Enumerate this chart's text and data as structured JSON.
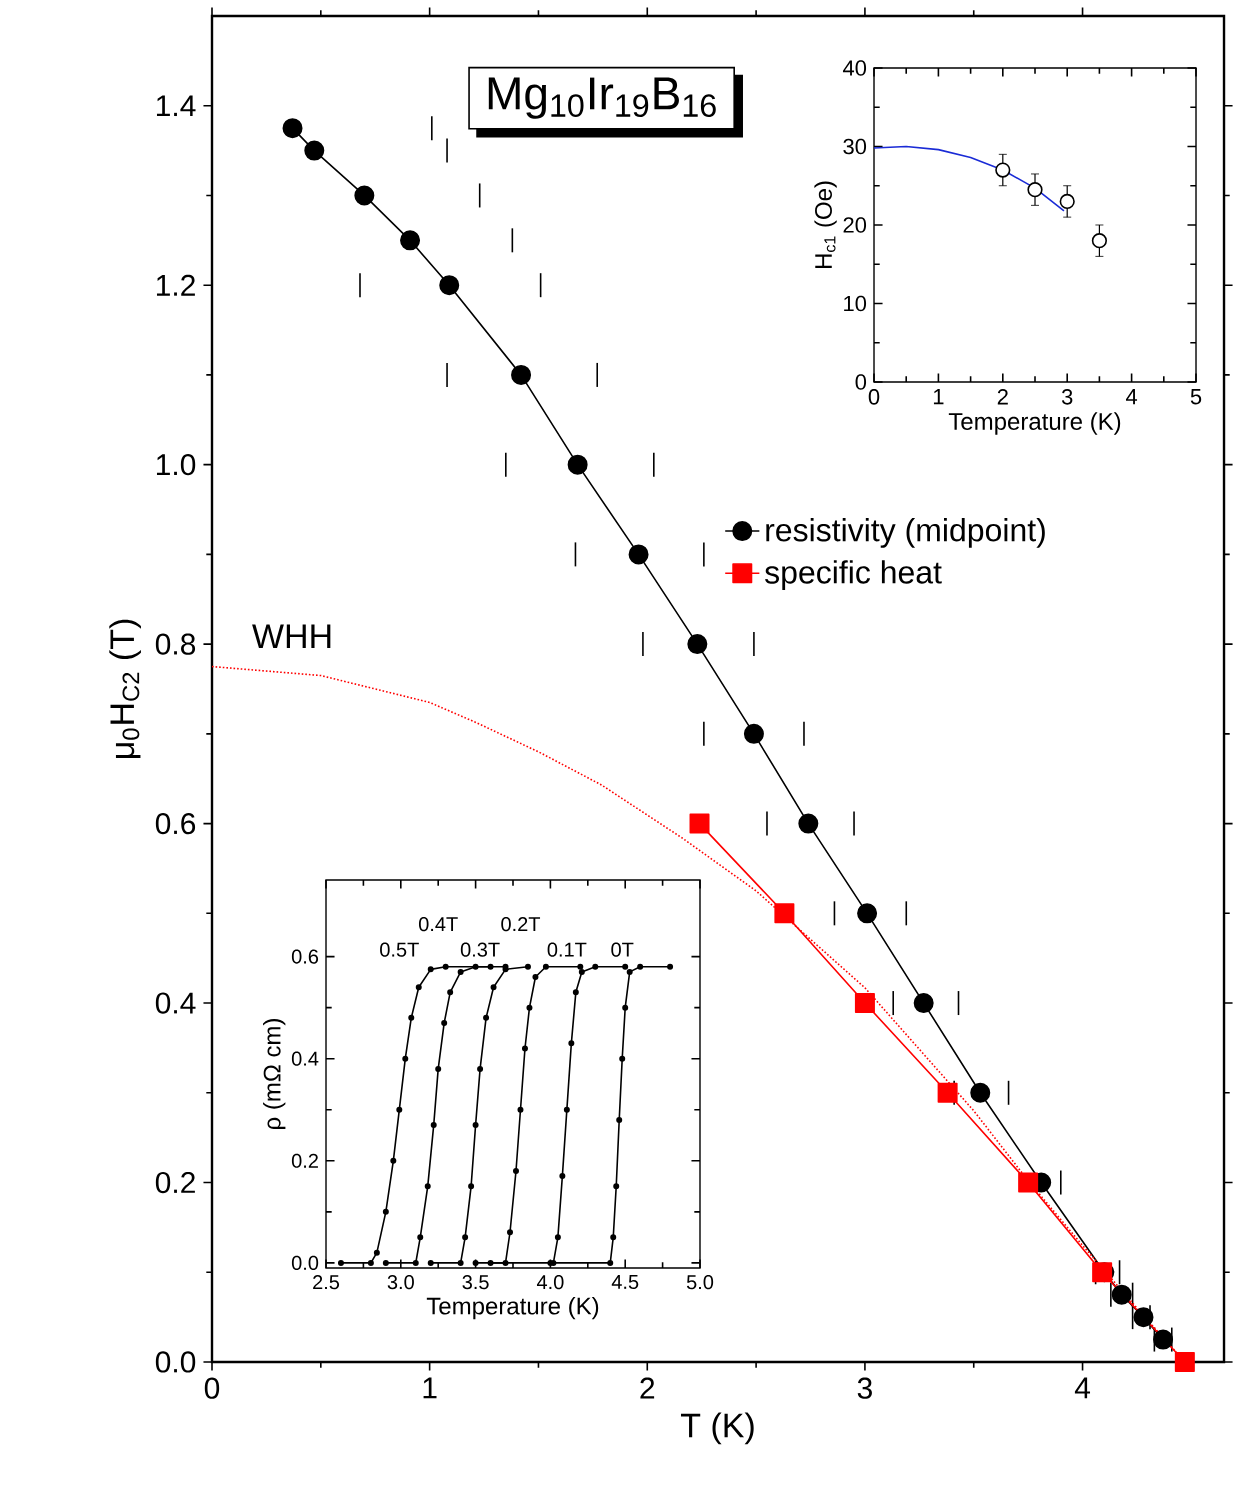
{
  "chart_data": [
    {
      "type": "line",
      "title": "Mg$_{10}$Ir$_{19}$B$_{16}$",
      "xlabel": "T (K)",
      "ylabel": "μ$_{0}$H$_{C2}$ (T)",
      "xlim": [
        0,
        4.65
      ],
      "ylim": [
        0,
        1.5
      ],
      "xticks": [
        0,
        1,
        2,
        3,
        4
      ],
      "yticks": [
        {
          "value": 0,
          "label": "0.0"
        },
        {
          "value": 0.2,
          "label": "0.2"
        },
        {
          "value": 0.4,
          "label": "0.4"
        },
        {
          "value": 0.6,
          "label": "0.6"
        },
        {
          "value": 0.8,
          "label": "0.8"
        },
        {
          "value": 1.0,
          "label": "1.0"
        },
        {
          "value": 1.2,
          "label": "1.2"
        },
        {
          "value": 1.4,
          "label": "1.4"
        }
      ],
      "legend": "right",
      "annotations": [
        {
          "text": "WHH",
          "x": 0.37,
          "y": 0.77
        }
      ],
      "series": [
        {
          "name": "resistivity (midpoint)",
          "color": "#000000",
          "marker": "circle",
          "x": [
            0.37,
            0.47,
            0.7,
            0.91,
            1.09,
            1.42,
            1.68,
            1.96,
            2.23,
            2.49,
            2.74,
            3.01,
            3.27,
            3.53,
            3.81,
            4.1,
            4.18,
            4.28,
            4.37
          ],
          "values": [
            1.375,
            1.35,
            1.3,
            1.25,
            1.2,
            1.1,
            1.0,
            0.9,
            0.8,
            0.7,
            0.6,
            0.5,
            0.4,
            0.3,
            0.2,
            0.1,
            0.075,
            0.05,
            0.025
          ],
          "xerrors": [
            [
              0.37,
              1.01
            ],
            [
              0.47,
              1.08
            ],
            [
              0.7,
              1.23
            ],
            [
              0.91,
              1.38
            ],
            [
              0.68,
              1.51
            ],
            [
              1.08,
              1.77
            ],
            [
              1.35,
              2.03
            ],
            [
              1.67,
              2.26
            ],
            [
              1.98,
              2.49
            ],
            [
              2.26,
              2.72
            ],
            [
              2.55,
              2.95
            ],
            [
              2.86,
              3.19
            ],
            [
              3.13,
              3.43
            ],
            [
              3.41,
              3.66
            ],
            [
              3.81,
              3.9
            ],
            [
              4.06,
              4.17
            ],
            [
              4.13,
              4.23
            ],
            [
              4.23,
              4.31
            ],
            [
              4.33,
              4.41
            ]
          ]
        },
        {
          "name": "specific heat",
          "color": "#ff0000",
          "marker": "square",
          "x": [
            2.24,
            2.63,
            3.0,
            3.38,
            3.75,
            4.09,
            4.47
          ],
          "values": [
            0.6,
            0.5,
            0.4,
            0.3,
            0.2,
            0.1,
            0.0
          ]
        },
        {
          "color": "#ff0000",
          "marker": "none",
          "line_style": "dotted",
          "x": [
            0,
            0.5,
            1.0,
            1.21,
            1.5,
            1.79,
            2.16,
            2.5,
            3.0,
            3.5,
            3.75,
            4.0,
            4.25,
            4.47
          ],
          "values": [
            0.775,
            0.765,
            0.735,
            0.713,
            0.68,
            0.643,
            0.584,
            0.525,
            0.417,
            0.28,
            0.202,
            0.13,
            0.06,
            0.0
          ]
        }
      ]
    },
    {
      "type": "scatter",
      "xlabel": "Temperature (K)",
      "ylabel": "H$_{c1}$ (Oe)",
      "xlim": [
        0,
        5
      ],
      "ylim": [
        0,
        40
      ],
      "xticks": [
        0,
        1,
        2,
        3,
        4,
        5
      ],
      "yticks": [
        0,
        10,
        20,
        30,
        40
      ],
      "series": [
        {
          "color": "#000000",
          "marker": "circle",
          "x": [
            2,
            2.5,
            3,
            3.5
          ],
          "values": [
            27,
            24.5,
            23,
            18
          ],
          "errors": [
            2,
            2,
            2,
            2
          ]
        },
        {
          "type": "line",
          "color": "#1a2bd6",
          "marker": "none",
          "x": [
            0,
            0.5,
            1,
            1.5,
            2,
            2.5,
            2.95
          ],
          "values": [
            29.8,
            30,
            29.6,
            28.6,
            27,
            24.7,
            21.8
          ]
        }
      ]
    },
    {
      "type": "line",
      "xlabel": "Temperature (K)",
      "ylabel": "ρ (mΩ cm)",
      "xlim": [
        2.5,
        5.0
      ],
      "ylim": [
        -0.01,
        0.75
      ],
      "xticks": [
        {
          "value": 2.5,
          "label": "2.5"
        },
        {
          "value": 3.0,
          "label": "3.0"
        },
        {
          "value": 3.5,
          "label": "3.5"
        },
        {
          "value": 4.0,
          "label": "4.0"
        },
        {
          "value": 4.5,
          "label": "4.5"
        },
        {
          "value": 5.0,
          "label": "5.0"
        }
      ],
      "yticks": [
        {
          "value": 0,
          "label": "0.0"
        },
        {
          "value": 0.2,
          "label": "0.2"
        },
        {
          "value": 0.4,
          "label": "0.4"
        },
        {
          "value": 0.6,
          "label": "0.6"
        }
      ],
      "marker": "circle",
      "series": [
        {
          "name": "0.5T",
          "color": "#000000",
          "x": [
            2.6,
            2.8,
            2.84,
            2.9,
            2.95,
            2.99,
            3.03,
            3.07,
            3.12,
            3.2,
            3.3,
            3.6
          ],
          "values": [
            0,
            0,
            0.02,
            0.1,
            0.2,
            0.3,
            0.4,
            0.48,
            0.54,
            0.575,
            0.58,
            0.58
          ]
        },
        {
          "name": "0.4T",
          "color": "#000000",
          "x": [
            2.9,
            3.1,
            3.13,
            3.18,
            3.22,
            3.25,
            3.29,
            3.33,
            3.4,
            3.5,
            3.7
          ],
          "values": [
            0,
            0,
            0.05,
            0.15,
            0.27,
            0.38,
            0.47,
            0.53,
            0.57,
            0.58,
            0.58
          ]
        },
        {
          "name": "0.3T",
          "color": "#000000",
          "x": [
            3.2,
            3.4,
            3.43,
            3.47,
            3.5,
            3.53,
            3.57,
            3.62,
            3.7,
            3.85
          ],
          "values": [
            0,
            0,
            0.05,
            0.15,
            0.27,
            0.38,
            0.48,
            0.54,
            0.575,
            0.58
          ]
        },
        {
          "name": "0.2T",
          "color": "#000000",
          "x": [
            3.5,
            3.7,
            3.73,
            3.77,
            3.8,
            3.83,
            3.86,
            3.9,
            3.97,
            4.2
          ],
          "values": [
            0,
            0,
            0.06,
            0.18,
            0.3,
            0.42,
            0.5,
            0.56,
            0.58,
            0.58
          ]
        },
        {
          "name": "0.1T",
          "color": "#000000",
          "x": [
            3.6,
            4.02,
            4.05,
            4.08,
            4.11,
            4.14,
            4.17,
            4.21,
            4.3,
            4.5
          ],
          "values": [
            0,
            0,
            0.05,
            0.17,
            0.3,
            0.43,
            0.53,
            0.57,
            0.58,
            0.58
          ]
        },
        {
          "name": "0T",
          "color": "#000000",
          "x": [
            4.0,
            4.4,
            4.42,
            4.44,
            4.46,
            4.48,
            4.5,
            4.53,
            4.6,
            4.8
          ],
          "values": [
            0,
            0,
            0.05,
            0.15,
            0.28,
            0.4,
            0.5,
            0.57,
            0.58,
            0.58
          ]
        }
      ]
    }
  ]
}
